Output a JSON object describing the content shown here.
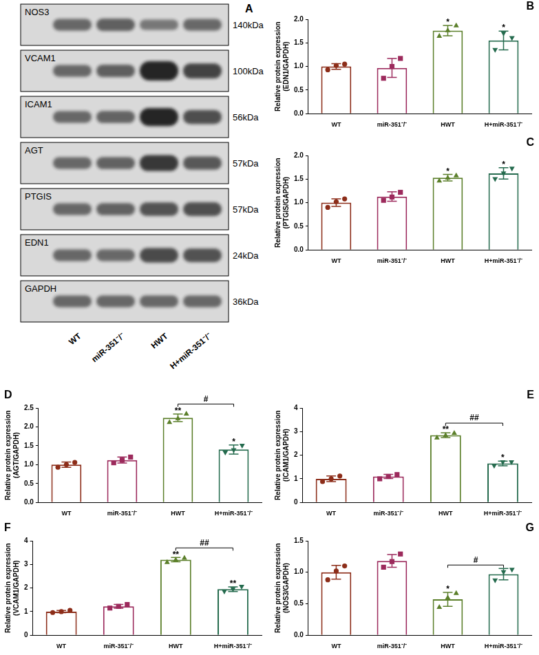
{
  "western_blot": {
    "panel": "A",
    "lanes": [
      "WT",
      "miR-351⁻/⁻",
      "HWT",
      "H+miR-351⁻/⁻"
    ],
    "rows": [
      {
        "protein": "NOS3",
        "size": "140kDa"
      },
      {
        "protein": "VCAM1",
        "size": "100kDa"
      },
      {
        "protein": "ICAM1",
        "size": "56kDa"
      },
      {
        "protein": "AGT",
        "size": "57kDa"
      },
      {
        "protein": "PTGIS",
        "size": "57kDa"
      },
      {
        "protein": "EDN1",
        "size": "24kDa"
      },
      {
        "protein": "GAPDH",
        "size": "36kDa"
      }
    ]
  },
  "chart_data": [
    {
      "panel": "B",
      "type": "bar",
      "y_label": [
        "Relative protein expression",
        "(EDN1/GAPDH)"
      ],
      "categories": [
        "WT",
        "miR-351⁻/⁻",
        "HWT",
        "H+miR-351⁻/⁻"
      ],
      "values": [
        1.0,
        0.97,
        1.76,
        1.55
      ],
      "error": [
        0.06,
        0.2,
        0.11,
        0.2
      ],
      "points": [
        [
          0.93,
          1.02,
          1.05
        ],
        [
          0.75,
          1.0,
          1.17
        ],
        [
          1.65,
          1.77,
          1.87
        ],
        [
          1.35,
          1.7,
          1.6
        ]
      ],
      "colors": [
        "#8c2d19",
        "#9c2a5c",
        "#5b7f2a",
        "#256b4e"
      ],
      "ylim": [
        0,
        2
      ],
      "yticks": [
        {
          "value": 0,
          "label": "0.0"
        },
        0.5,
        {
          "value": 1,
          "label": "1.0"
        },
        1.5,
        {
          "value": 2,
          "label": "2.0"
        }
      ],
      "grid": false,
      "annotations": [
        {
          "category": "HWT",
          "text": "*"
        },
        {
          "category": "H+miR-351⁻/⁻",
          "text": "*"
        }
      ]
    },
    {
      "panel": "C",
      "type": "bar",
      "y_label": [
        "Relative protein expression",
        "(PTGIS/GAPDH)"
      ],
      "categories": [
        "WT",
        "miR-351⁻/⁻",
        "HWT",
        "H+miR-351⁻/⁻"
      ],
      "values": [
        1.0,
        1.13,
        1.53,
        1.62
      ],
      "error": [
        0.08,
        0.1,
        0.07,
        0.12
      ],
      "points": [
        [
          0.9,
          1.02,
          1.08
        ],
        [
          1.05,
          1.12,
          1.22
        ],
        [
          1.47,
          1.53,
          1.58
        ],
        [
          1.5,
          1.62,
          1.72
        ]
      ],
      "colors": [
        "#8c2d19",
        "#9c2a5c",
        "#5b7f2a",
        "#256b4e"
      ],
      "ylim": [
        0,
        2
      ],
      "yticks": [
        {
          "value": 0,
          "label": "0.0"
        },
        0.5,
        {
          "value": 1,
          "label": "1.0"
        },
        1.5,
        {
          "value": 2,
          "label": "2.0"
        }
      ],
      "grid": false,
      "annotations": [
        {
          "category": "HWT",
          "text": "*"
        },
        {
          "category": "H+miR-351⁻/⁻",
          "text": "*"
        }
      ]
    },
    {
      "panel": "D",
      "type": "bar",
      "y_label": [
        "Relative protein expression",
        "(AGT/GAPDH)"
      ],
      "categories": [
        "WT",
        "miR-351⁻/⁻",
        "HWT",
        "H+miR-351⁻/⁻"
      ],
      "values": [
        1.0,
        1.12,
        2.24,
        1.4
      ],
      "error": [
        0.07,
        0.08,
        0.1,
        0.12
      ],
      "points": [
        [
          0.93,
          1.0,
          1.06
        ],
        [
          1.05,
          1.12,
          1.2
        ],
        [
          2.13,
          2.23,
          2.35
        ],
        [
          1.32,
          1.38,
          1.5
        ]
      ],
      "colors": [
        "#8c2d19",
        "#9c2a5c",
        "#5b7f2a",
        "#256b4e"
      ],
      "ylim": [
        0,
        2.5
      ],
      "yticks": [
        {
          "value": 0,
          "label": "0.0"
        },
        0.5,
        {
          "value": 1,
          "label": "1.0"
        },
        1.5,
        {
          "value": 2,
          "label": "2.0"
        },
        2.5
      ],
      "grid": false,
      "annotations": [
        {
          "category": "HWT",
          "text": "**"
        },
        {
          "category": "H+miR-351⁻/⁻",
          "text": "*"
        }
      ],
      "brackets": [
        {
          "from": "HWT",
          "to": "H+miR-351⁻/⁻",
          "text": "#"
        }
      ]
    },
    {
      "panel": "E",
      "type": "bar",
      "y_label": [
        "Relative protein expression",
        "(ICAM1/GAPDH)"
      ],
      "categories": [
        "WT",
        "miR-351⁻/⁻",
        "HWT",
        "H+miR-351⁻/⁻"
      ],
      "values": [
        1.0,
        1.1,
        2.85,
        1.65
      ],
      "error": [
        0.12,
        0.09,
        0.1,
        0.1
      ],
      "points": [
        [
          0.88,
          1.0,
          1.12
        ],
        [
          1.0,
          1.1,
          1.18
        ],
        [
          2.75,
          2.85,
          2.95
        ],
        [
          1.55,
          1.7,
          1.7
        ]
      ],
      "colors": [
        "#8c2d19",
        "#9c2a5c",
        "#5b7f2a",
        "#256b4e"
      ],
      "ylim": [
        0,
        4
      ],
      "yticks": [
        0,
        1,
        2,
        3,
        4
      ],
      "grid": false,
      "annotations": [
        {
          "category": "HWT",
          "text": "**"
        },
        {
          "category": "H+miR-351⁻/⁻",
          "text": "*"
        }
      ],
      "brackets": [
        {
          "from": "HWT",
          "to": "H+miR-351⁻/⁻",
          "text": "##"
        }
      ]
    },
    {
      "panel": "F",
      "type": "bar",
      "y_label": [
        "Relative protein expression",
        "(VCAM1/GAPDH)"
      ],
      "categories": [
        "WT",
        "miR-351⁻/⁻",
        "HWT",
        "H+miR-351⁻/⁻"
      ],
      "values": [
        1.0,
        1.22,
        3.2,
        1.95
      ],
      "error": [
        0.05,
        0.08,
        0.09,
        0.1
      ],
      "points": [
        [
          0.96,
          1.0,
          1.05
        ],
        [
          1.15,
          1.22,
          1.3
        ],
        [
          3.1,
          3.2,
          3.28
        ],
        [
          1.85,
          1.95,
          2.05
        ]
      ],
      "colors": [
        "#8c2d19",
        "#9c2a5c",
        "#5b7f2a",
        "#256b4e"
      ],
      "ylim": [
        0,
        4
      ],
      "yticks": [
        0,
        1,
        2,
        3,
        4
      ],
      "grid": false,
      "annotations": [
        {
          "category": "HWT",
          "text": "**"
        },
        {
          "category": "H+miR-351⁻/⁻",
          "text": "**"
        }
      ],
      "brackets": [
        {
          "from": "HWT",
          "to": "H+miR-351⁻/⁻",
          "text": "##"
        }
      ]
    },
    {
      "panel": "G",
      "type": "bar",
      "y_label": [
        "Relative protein expression",
        "(NOS3/GAPDH)"
      ],
      "categories": [
        "WT",
        "miR-351⁻/⁻",
        "HWT",
        "H+miR-351⁻/⁻"
      ],
      "values": [
        1.0,
        1.18,
        0.57,
        0.97
      ],
      "error": [
        0.11,
        0.1,
        0.11,
        0.09
      ],
      "points": [
        [
          0.88,
          1.02,
          1.1
        ],
        [
          1.08,
          1.17,
          1.29
        ],
        [
          0.45,
          0.6,
          0.67
        ],
        [
          0.87,
          1.0,
          1.04
        ]
      ],
      "colors": [
        "#8c2d19",
        "#9c2a5c",
        "#5b7f2a",
        "#256b4e"
      ],
      "ylim": [
        0,
        1.5
      ],
      "yticks": [
        {
          "value": 0,
          "label": "0.0"
        },
        0.5,
        {
          "value": 1,
          "label": "1.0"
        },
        1.5
      ],
      "grid": false,
      "annotations": [
        {
          "category": "HWT",
          "text": "*"
        }
      ],
      "brackets": [
        {
          "from": "HWT",
          "to": "H+miR-351⁻/⁻",
          "text": "#"
        }
      ]
    }
  ]
}
